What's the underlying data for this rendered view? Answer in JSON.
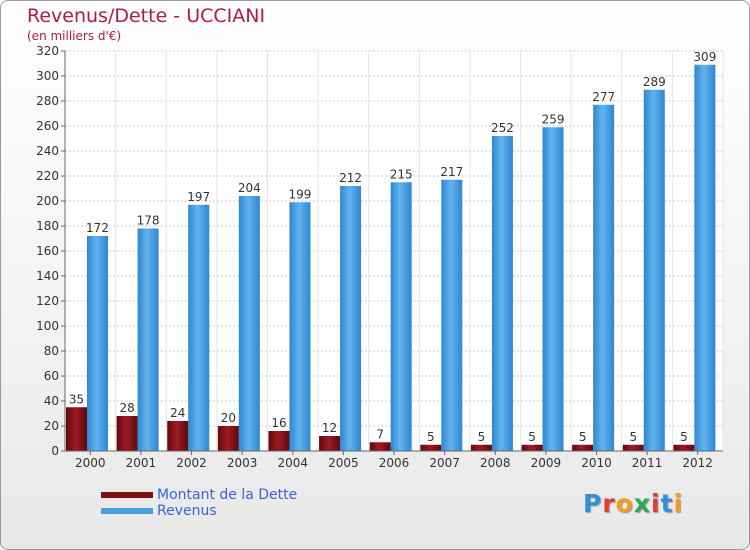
{
  "chart_data": {
    "type": "bar",
    "title": "Revenus/Dette - UCCIANI",
    "subtitle": "(en milliers d'€)",
    "categories": [
      "2000",
      "2001",
      "2002",
      "2003",
      "2004",
      "2005",
      "2006",
      "2007",
      "2008",
      "2009",
      "2010",
      "2011",
      "2012"
    ],
    "series": [
      {
        "name": "Montant de la Dette",
        "color": "#7a1016",
        "values": [
          35,
          28,
          24,
          20,
          16,
          12,
          7,
          5,
          5,
          5,
          5,
          5,
          5
        ]
      },
      {
        "name": "Revenus",
        "color": "#4a9fe0",
        "values": [
          172,
          178,
          197,
          204,
          199,
          212,
          215,
          217,
          252,
          259,
          277,
          289,
          309
        ]
      }
    ],
    "ylim": [
      0,
      320
    ],
    "yticks": [
      0,
      20,
      40,
      60,
      80,
      100,
      120,
      140,
      160,
      180,
      200,
      220,
      240,
      260,
      280,
      300,
      320
    ],
    "grid": true,
    "legend_position": "bottom-left"
  },
  "logo": {
    "letters": [
      "P",
      "r",
      "o",
      "x",
      "i",
      "t",
      "i"
    ],
    "colors": [
      "#2f8fd8",
      "#e23c2f",
      "#f39c1f",
      "#2fa84f",
      "#e23c2f",
      "#2f8fd8",
      "#f39c1f"
    ]
  }
}
